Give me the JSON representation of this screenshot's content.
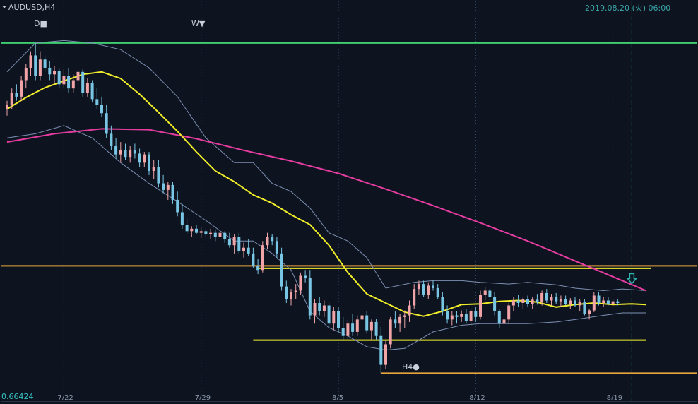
{
  "chart_data": {
    "type": "candlestick",
    "symbol": "AUDUSD,H4",
    "timestamp_label": "2019.08.20 (火) 06:00",
    "bottom_left_price_label": "0.66424",
    "x_tick_labels": [
      "7/22",
      "7/29",
      "8/5",
      "8/12",
      "8/19"
    ],
    "markers": {
      "daily": "D■",
      "weekly": "W▼",
      "h4": "H4●"
    },
    "grid": true,
    "colors": {
      "background": "#0d1420",
      "up": "#f0a4a8",
      "down": "#79c6e4",
      "ma_fast": "#f2ee2a",
      "ma_slow": "#e53ca0",
      "bands": "#7d8fb3",
      "level_green": "#3ecf70",
      "level_orange": "#e8a33c",
      "level_yellow": "#f2ee2a",
      "grid": "#3a5877",
      "current_time": "#2fb3ad"
    },
    "ma_fast": [
      [
        0,
        0.692
      ],
      [
        4,
        0.6934
      ],
      [
        8,
        0.6946
      ],
      [
        12,
        0.6954
      ],
      [
        16,
        0.6962
      ],
      [
        20,
        0.6965
      ],
      [
        24,
        0.6957
      ],
      [
        28,
        0.6938
      ],
      [
        32,
        0.6916
      ],
      [
        36,
        0.6893
      ],
      [
        40,
        0.6868
      ],
      [
        44,
        0.6845
      ],
      [
        48,
        0.6832
      ],
      [
        52,
        0.6816
      ],
      [
        56,
        0.6806
      ],
      [
        60,
        0.6792
      ],
      [
        64,
        0.678
      ],
      [
        68,
        0.6755
      ],
      [
        72,
        0.6722
      ],
      [
        76,
        0.6696
      ],
      [
        80,
        0.6685
      ],
      [
        84,
        0.6674
      ],
      [
        88,
        0.6669
      ],
      [
        92,
        0.6675
      ],
      [
        96,
        0.6683
      ],
      [
        100,
        0.6684
      ],
      [
        104,
        0.6687
      ],
      [
        108,
        0.6688
      ],
      [
        112,
        0.6686
      ],
      [
        116,
        0.668
      ],
      [
        120,
        0.6683
      ],
      [
        124,
        0.6685
      ],
      [
        128,
        0.6683
      ],
      [
        132,
        0.6684
      ],
      [
        135,
        0.6683
      ]
    ],
    "ma_slow": [
      [
        0,
        0.688
      ],
      [
        10,
        0.689
      ],
      [
        20,
        0.6896
      ],
      [
        30,
        0.6895
      ],
      [
        40,
        0.6884
      ],
      [
        50,
        0.687
      ],
      [
        60,
        0.6857
      ],
      [
        70,
        0.6842
      ],
      [
        80,
        0.6823
      ],
      [
        90,
        0.6803
      ],
      [
        100,
        0.6782
      ],
      [
        110,
        0.676
      ],
      [
        120,
        0.6736
      ],
      [
        130,
        0.6712
      ],
      [
        135,
        0.67
      ]
    ],
    "bands_upper": [
      [
        0,
        0.6965
      ],
      [
        6,
        0.7
      ],
      [
        12,
        0.7003
      ],
      [
        18,
        0.7
      ],
      [
        24,
        0.6992
      ],
      [
        30,
        0.697
      ],
      [
        36,
        0.6935
      ],
      [
        42,
        0.6885
      ],
      [
        48,
        0.6855
      ],
      [
        52,
        0.6855
      ],
      [
        56,
        0.683
      ],
      [
        60,
        0.682
      ],
      [
        64,
        0.68
      ],
      [
        68,
        0.677
      ],
      [
        72,
        0.676
      ],
      [
        76,
        0.674
      ],
      [
        80,
        0.6703
      ],
      [
        86,
        0.671
      ],
      [
        90,
        0.6712
      ],
      [
        96,
        0.6712
      ],
      [
        100,
        0.671
      ],
      [
        106,
        0.6708
      ],
      [
        110,
        0.671
      ],
      [
        116,
        0.6707
      ],
      [
        120,
        0.6703
      ],
      [
        126,
        0.67
      ],
      [
        130,
        0.6702
      ],
      [
        135,
        0.67
      ]
    ],
    "bands_lower": [
      [
        0,
        0.6885
      ],
      [
        6,
        0.689
      ],
      [
        12,
        0.69
      ],
      [
        18,
        0.6885
      ],
      [
        24,
        0.6855
      ],
      [
        30,
        0.683
      ],
      [
        36,
        0.6808
      ],
      [
        42,
        0.6785
      ],
      [
        48,
        0.676
      ],
      [
        52,
        0.676
      ],
      [
        56,
        0.6745
      ],
      [
        60,
        0.6725
      ],
      [
        64,
        0.6675
      ],
      [
        68,
        0.6655
      ],
      [
        72,
        0.6645
      ],
      [
        76,
        0.6632
      ],
      [
        80,
        0.6628
      ],
      [
        84,
        0.663
      ],
      [
        90,
        0.665
      ],
      [
        96,
        0.6658
      ],
      [
        100,
        0.666
      ],
      [
        106,
        0.666
      ],
      [
        110,
        0.666
      ],
      [
        116,
        0.6662
      ],
      [
        120,
        0.6665
      ],
      [
        126,
        0.667
      ],
      [
        130,
        0.6673
      ],
      [
        135,
        0.6673
      ]
    ],
    "candles": [
      [
        0.692,
        0.693,
        0.6912,
        0.6925
      ],
      [
        0.6925,
        0.6945,
        0.692,
        0.694
      ],
      [
        0.694,
        0.695,
        0.693,
        0.6935
      ],
      [
        0.6935,
        0.696,
        0.693,
        0.6955
      ],
      [
        0.6955,
        0.6975,
        0.6945,
        0.697
      ],
      [
        0.697,
        0.699,
        0.696,
        0.6985
      ],
      [
        0.6985,
        0.7,
        0.6955,
        0.696
      ],
      [
        0.696,
        0.699,
        0.6955,
        0.698
      ],
      [
        0.698,
        0.6985,
        0.6965,
        0.697
      ],
      [
        0.697,
        0.6978,
        0.6955,
        0.6962
      ],
      [
        0.6962,
        0.6972,
        0.695,
        0.6966
      ],
      [
        0.6966,
        0.697,
        0.6945,
        0.695
      ],
      [
        0.695,
        0.6968,
        0.6945,
        0.696
      ],
      [
        0.696,
        0.697,
        0.694,
        0.6945
      ],
      [
        0.6945,
        0.6962,
        0.694,
        0.6955
      ],
      [
        0.6955,
        0.697,
        0.695,
        0.6965
      ],
      [
        0.6965,
        0.6968,
        0.6935,
        0.694
      ],
      [
        0.694,
        0.6958,
        0.6935,
        0.6952
      ],
      [
        0.6952,
        0.6955,
        0.6928,
        0.6932
      ],
      [
        0.6932,
        0.6945,
        0.692,
        0.6925
      ],
      [
        0.6925,
        0.6935,
        0.691,
        0.6915
      ],
      [
        0.6915,
        0.6925,
        0.6885,
        0.689
      ],
      [
        0.689,
        0.69,
        0.687,
        0.6875
      ],
      [
        0.6875,
        0.6885,
        0.686,
        0.6865
      ],
      [
        0.6865,
        0.688,
        0.6855,
        0.687
      ],
      [
        0.687,
        0.6878,
        0.6858,
        0.6862
      ],
      [
        0.6862,
        0.6875,
        0.6855,
        0.687
      ],
      [
        0.687,
        0.6878,
        0.686,
        0.6866
      ],
      [
        0.6866,
        0.6872,
        0.685,
        0.6855
      ],
      [
        0.6855,
        0.6868,
        0.685,
        0.6865
      ],
      [
        0.6865,
        0.6868,
        0.684,
        0.6845
      ],
      [
        0.6845,
        0.6858,
        0.6835,
        0.685
      ],
      [
        0.685,
        0.6858,
        0.6825,
        0.683
      ],
      [
        0.683,
        0.684,
        0.6818,
        0.6822
      ],
      [
        0.6822,
        0.6832,
        0.681,
        0.6828
      ],
      [
        0.6828,
        0.6832,
        0.6805,
        0.681
      ],
      [
        0.681,
        0.682,
        0.679,
        0.6795
      ],
      [
        0.6795,
        0.6805,
        0.6775,
        0.678
      ],
      [
        0.678,
        0.6788,
        0.6768,
        0.6772
      ],
      [
        0.6772,
        0.6778,
        0.6765,
        0.6775
      ],
      [
        0.6775,
        0.678,
        0.6768,
        0.677
      ],
      [
        0.677,
        0.6776,
        0.6764,
        0.6772
      ],
      [
        0.6772,
        0.6775,
        0.6765,
        0.6768
      ],
      [
        0.6768,
        0.6775,
        0.6762,
        0.677
      ],
      [
        0.677,
        0.6774,
        0.676,
        0.6765
      ],
      [
        0.6765,
        0.6775,
        0.6755,
        0.677
      ],
      [
        0.677,
        0.6772,
        0.6758,
        0.6762
      ],
      [
        0.6762,
        0.677,
        0.6752,
        0.6755
      ],
      [
        0.6755,
        0.6768,
        0.6745,
        0.6765
      ],
      [
        0.6765,
        0.677,
        0.6745,
        0.6748
      ],
      [
        0.6748,
        0.6758,
        0.674,
        0.6752
      ],
      [
        0.6752,
        0.6762,
        0.6742,
        0.6745
      ],
      [
        0.6745,
        0.6752,
        0.6728,
        0.673
      ],
      [
        0.673,
        0.6738,
        0.672,
        0.6725
      ],
      [
        0.6725,
        0.676,
        0.6722,
        0.6755
      ],
      [
        0.6755,
        0.677,
        0.675,
        0.6765
      ],
      [
        0.6765,
        0.6768,
        0.6755,
        0.676
      ],
      [
        0.676,
        0.6765,
        0.674,
        0.6745
      ],
      [
        0.6745,
        0.6752,
        0.67,
        0.6705
      ],
      [
        0.6705,
        0.6712,
        0.6685,
        0.669
      ],
      [
        0.669,
        0.6702,
        0.6682,
        0.6698
      ],
      [
        0.6698,
        0.6708,
        0.669,
        0.67
      ],
      [
        0.67,
        0.6722,
        0.6695,
        0.6718
      ],
      [
        0.6718,
        0.6725,
        0.671,
        0.6715
      ],
      [
        0.6715,
        0.6725,
        0.6665,
        0.667
      ],
      [
        0.667,
        0.669,
        0.666,
        0.6685
      ],
      [
        0.6685,
        0.6692,
        0.667,
        0.6675
      ],
      [
        0.6675,
        0.6688,
        0.6668,
        0.6682
      ],
      [
        0.6682,
        0.6686,
        0.6655,
        0.666
      ],
      [
        0.666,
        0.668,
        0.6652,
        0.6675
      ],
      [
        0.6675,
        0.668,
        0.665,
        0.6655
      ],
      [
        0.6655,
        0.6668,
        0.664,
        0.6645
      ],
      [
        0.6645,
        0.6665,
        0.664,
        0.666
      ],
      [
        0.666,
        0.6672,
        0.6645,
        0.665
      ],
      [
        0.665,
        0.667,
        0.6645,
        0.6665
      ],
      [
        0.6665,
        0.6678,
        0.6658,
        0.667
      ],
      [
        0.667,
        0.6675,
        0.6648,
        0.6652
      ],
      [
        0.6652,
        0.6665,
        0.664,
        0.6662
      ],
      [
        0.6662,
        0.6666,
        0.664,
        0.6645
      ],
      [
        0.6645,
        0.6656,
        0.66,
        0.661
      ],
      [
        0.661,
        0.664,
        0.6605,
        0.6635
      ],
      [
        0.6635,
        0.6668,
        0.663,
        0.6665
      ],
      [
        0.6665,
        0.6675,
        0.6655,
        0.666
      ],
      [
        0.666,
        0.6672,
        0.665,
        0.6668
      ],
      [
        0.6668,
        0.6676,
        0.6655,
        0.667
      ],
      [
        0.667,
        0.6688,
        0.6662,
        0.6682
      ],
      [
        0.6682,
        0.6708,
        0.6678,
        0.6702
      ],
      [
        0.6702,
        0.6712,
        0.6695,
        0.6708
      ],
      [
        0.6708,
        0.6712,
        0.6692,
        0.6695
      ],
      [
        0.6695,
        0.671,
        0.669,
        0.6706
      ],
      [
        0.6706,
        0.6712,
        0.67,
        0.6703
      ],
      [
        0.6703,
        0.6708,
        0.669,
        0.6692
      ],
      [
        0.6692,
        0.6698,
        0.667,
        0.6675
      ],
      [
        0.6675,
        0.6682,
        0.666,
        0.6665
      ],
      [
        0.6665,
        0.6675,
        0.6658,
        0.667
      ],
      [
        0.667,
        0.6675,
        0.666,
        0.6668
      ],
      [
        0.6668,
        0.6676,
        0.6662,
        0.6672
      ],
      [
        0.6672,
        0.6678,
        0.666,
        0.6663
      ],
      [
        0.6663,
        0.6678,
        0.6658,
        0.6675
      ],
      [
        0.6675,
        0.668,
        0.6662,
        0.6668
      ],
      [
        0.6668,
        0.67,
        0.6665,
        0.6695
      ],
      [
        0.6695,
        0.6705,
        0.6688,
        0.67
      ],
      [
        0.67,
        0.6702,
        0.6688,
        0.6692
      ],
      [
        0.6692,
        0.6698,
        0.667,
        0.6675
      ],
      [
        0.6675,
        0.6678,
        0.6655,
        0.666
      ],
      [
        0.666,
        0.667,
        0.665,
        0.6665
      ],
      [
        0.6665,
        0.6685,
        0.666,
        0.6682
      ],
      [
        0.6682,
        0.6692,
        0.6675,
        0.6688
      ],
      [
        0.6688,
        0.6695,
        0.668,
        0.6685
      ],
      [
        0.6685,
        0.6692,
        0.6678,
        0.669
      ],
      [
        0.669,
        0.6694,
        0.668,
        0.6684
      ],
      [
        0.6684,
        0.6692,
        0.6678,
        0.6689
      ],
      [
        0.6689,
        0.6696,
        0.6683,
        0.6686
      ],
      [
        0.6686,
        0.67,
        0.6682,
        0.6697
      ],
      [
        0.6697,
        0.6702,
        0.6685,
        0.6688
      ],
      [
        0.6688,
        0.6696,
        0.6682,
        0.6692
      ],
      [
        0.6692,
        0.6697,
        0.6684,
        0.6687
      ],
      [
        0.6687,
        0.6694,
        0.668,
        0.669
      ],
      [
        0.669,
        0.6694,
        0.6682,
        0.6684
      ],
      [
        0.6684,
        0.6691,
        0.6678,
        0.6688
      ],
      [
        0.6688,
        0.6692,
        0.668,
        0.6682
      ],
      [
        0.6682,
        0.669,
        0.6675,
        0.6686
      ],
      [
        0.6686,
        0.669,
        0.667,
        0.6672
      ],
      [
        0.6672,
        0.6678,
        0.6665,
        0.6676
      ],
      [
        0.6676,
        0.6698,
        0.6674,
        0.6694
      ],
      [
        0.6694,
        0.6698,
        0.6682,
        0.6685
      ],
      [
        0.6685,
        0.6692,
        0.668,
        0.6688
      ],
      [
        0.6688,
        0.6692,
        0.6682,
        0.6684
      ],
      [
        0.6684,
        0.669,
        0.668,
        0.6687
      ],
      [
        0.6687,
        0.669,
        0.6682,
        0.6685
      ]
    ],
    "levels": [
      {
        "name": "daily-high-level",
        "price": 0.7,
        "from": 0,
        "color": "#3ecf70"
      },
      {
        "name": "orange-level",
        "price": 0.673,
        "from": 0,
        "color": "#e8a33c"
      },
      {
        "name": "h4-low-level",
        "price": 0.66,
        "from": 79,
        "color": "#e8a33c"
      },
      {
        "name": "range-top-line",
        "price": 0.6727,
        "from": 53,
        "to": 136,
        "color": "#f2ee2a"
      },
      {
        "name": "range-bottom-line",
        "price": 0.664,
        "from": 52,
        "to": 135,
        "color": "#f2ee2a"
      }
    ],
    "ylim": [
      0.659,
      0.7035
    ]
  }
}
